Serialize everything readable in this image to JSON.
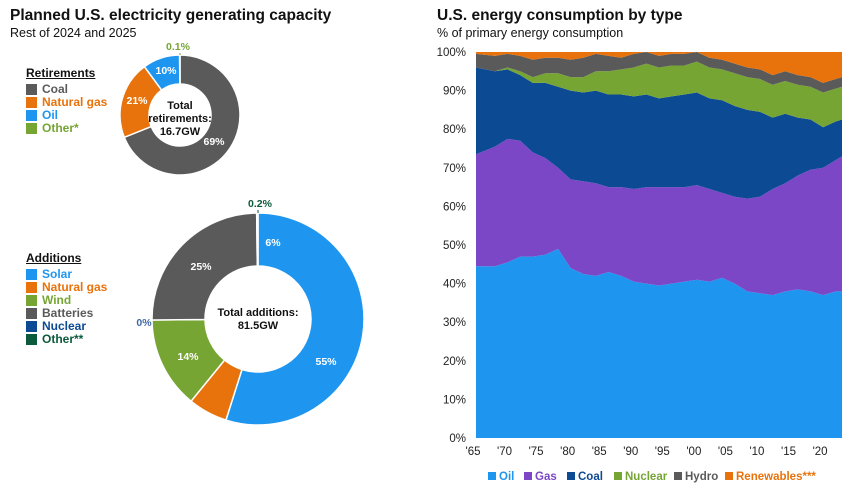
{
  "left_panel": {
    "title": "Planned U.S. electricity generating capacity",
    "subtitle": "Rest of 2024 and 2025"
  },
  "right_panel": {
    "title": "U.S. energy consumption by type",
    "subtitle": "% of primary energy consumption"
  },
  "chart_data": [
    {
      "type": "pie",
      "name": "retirements",
      "legend_title": "Retirements",
      "center_label": [
        "Total",
        "retirements:",
        "16.7GW"
      ],
      "slices": [
        {
          "label": "Coal",
          "value": 69,
          "value_label": "69%",
          "color": "#5a5a5a"
        },
        {
          "label": "Natural gas",
          "value": 21,
          "value_label": "21%",
          "color": "#e8730c"
        },
        {
          "label": "Oil",
          "value": 10,
          "value_label": "10%",
          "color": "#1e96f0"
        },
        {
          "label": "Other*",
          "value": 0.1,
          "value_label": "0.1%",
          "color": "#76a534"
        }
      ]
    },
    {
      "type": "pie",
      "name": "additions",
      "legend_title": "Additions",
      "center_label": [
        "Total additions:",
        "81.5GW"
      ],
      "slices": [
        {
          "label": "Solar",
          "value": 55,
          "value_label": "55%",
          "color": "#1e96f0"
        },
        {
          "label": "Natural gas",
          "value": 6,
          "value_label": "6%",
          "color": "#e8730c"
        },
        {
          "label": "Wind",
          "value": 14,
          "value_label": "14%",
          "color": "#76a534"
        },
        {
          "label": "Batteries",
          "value": 25,
          "value_label": "25%",
          "color": "#5a5a5a"
        },
        {
          "label": "Nuclear",
          "value": 0,
          "value_label": "0%",
          "color": "#0d4a94"
        },
        {
          "label": "Other**",
          "value": 0.2,
          "value_label": "0.2%",
          "color": "#0c5a3c"
        }
      ]
    },
    {
      "type": "area",
      "name": "energy-consumption",
      "stacked": true,
      "x": [
        1965,
        1968,
        1970,
        1972,
        1974,
        1976,
        1978,
        1980,
        1982,
        1984,
        1986,
        1988,
        1990,
        1992,
        1994,
        1996,
        1998,
        2000,
        2002,
        2004,
        2006,
        2008,
        2010,
        2012,
        2014,
        2016,
        2018,
        2020,
        2022,
        2023
      ],
      "x_tick_labels": [
        "'65",
        "'70",
        "'75",
        "'80",
        "'85",
        "'90",
        "'95",
        "'00",
        "'05",
        "'10",
        "'15",
        "'20"
      ],
      "x_tick_values": [
        1965,
        1970,
        1975,
        1980,
        1985,
        1990,
        1995,
        2000,
        2005,
        2010,
        2015,
        2020
      ],
      "ylim": [
        0,
        100
      ],
      "y_tick_labels": [
        "0%",
        "10%",
        "20%",
        "30%",
        "40%",
        "50%",
        "60%",
        "70%",
        "80%",
        "90%",
        "100%"
      ],
      "series": [
        {
          "name": "Oil",
          "color": "#1e96f0",
          "values": [
            44.5,
            44.5,
            45.5,
            47,
            47,
            47.5,
            49,
            44,
            42.5,
            42,
            43,
            42,
            40.5,
            40,
            39.5,
            40,
            40.5,
            41,
            40.5,
            41.5,
            40,
            38,
            37.5,
            37,
            38,
            38.5,
            38,
            37,
            38,
            38
          ]
        },
        {
          "name": "Gas",
          "color": "#7b47c6",
          "values": [
            29,
            31,
            32,
            30,
            27,
            25,
            21,
            23,
            24,
            24,
            22,
            23,
            24,
            25,
            25.5,
            25,
            24.5,
            24.5,
            24,
            22,
            22.5,
            24,
            25,
            27.5,
            28,
            29.5,
            31.5,
            33,
            34,
            35
          ]
        },
        {
          "name": "Coal",
          "color": "#0d4a94",
          "values": [
            22.5,
            19.5,
            18,
            17,
            18,
            19.5,
            21,
            23,
            23,
            24,
            24,
            24,
            24,
            24,
            23,
            23.5,
            24,
            24,
            23.5,
            24,
            23.5,
            23,
            22,
            18.5,
            18,
            15,
            13,
            10.5,
            10,
            9.5
          ]
        },
        {
          "name": "Nuclear",
          "color": "#76a534",
          "values": [
            0,
            0,
            0.5,
            1,
            1.5,
            2.5,
            3.5,
            3.5,
            4,
            5,
            6,
            6.5,
            7.5,
            8,
            8,
            8,
            7.5,
            8,
            8,
            8,
            8.5,
            8.5,
            8.5,
            8.5,
            8.5,
            8.5,
            8.5,
            9,
            8.5,
            8.5
          ]
        },
        {
          "name": "Hydro",
          "color": "#5a5a5a",
          "values": [
            3.5,
            4,
            3.5,
            4,
            4.5,
            4,
            4,
            4.5,
            5,
            4.5,
            4,
            3,
            3.5,
            3,
            3,
            3,
            3,
            2.5,
            2.5,
            2.5,
            2.5,
            2.5,
            2.5,
            2.5,
            2.5,
            2.5,
            2.5,
            2.5,
            2.5,
            2.5
          ]
        },
        {
          "name": "Renewables***",
          "color": "#e8730c",
          "values": [
            0.5,
            1,
            0.5,
            1,
            2,
            1.5,
            1.5,
            2,
            1.5,
            0.5,
            1,
            1.5,
            0.5,
            0,
            1,
            0.5,
            0.5,
            0,
            1.5,
            2,
            3,
            4,
            4.5,
            6,
            5,
            6,
            6.5,
            8,
            7,
            6.5
          ]
        }
      ]
    }
  ]
}
